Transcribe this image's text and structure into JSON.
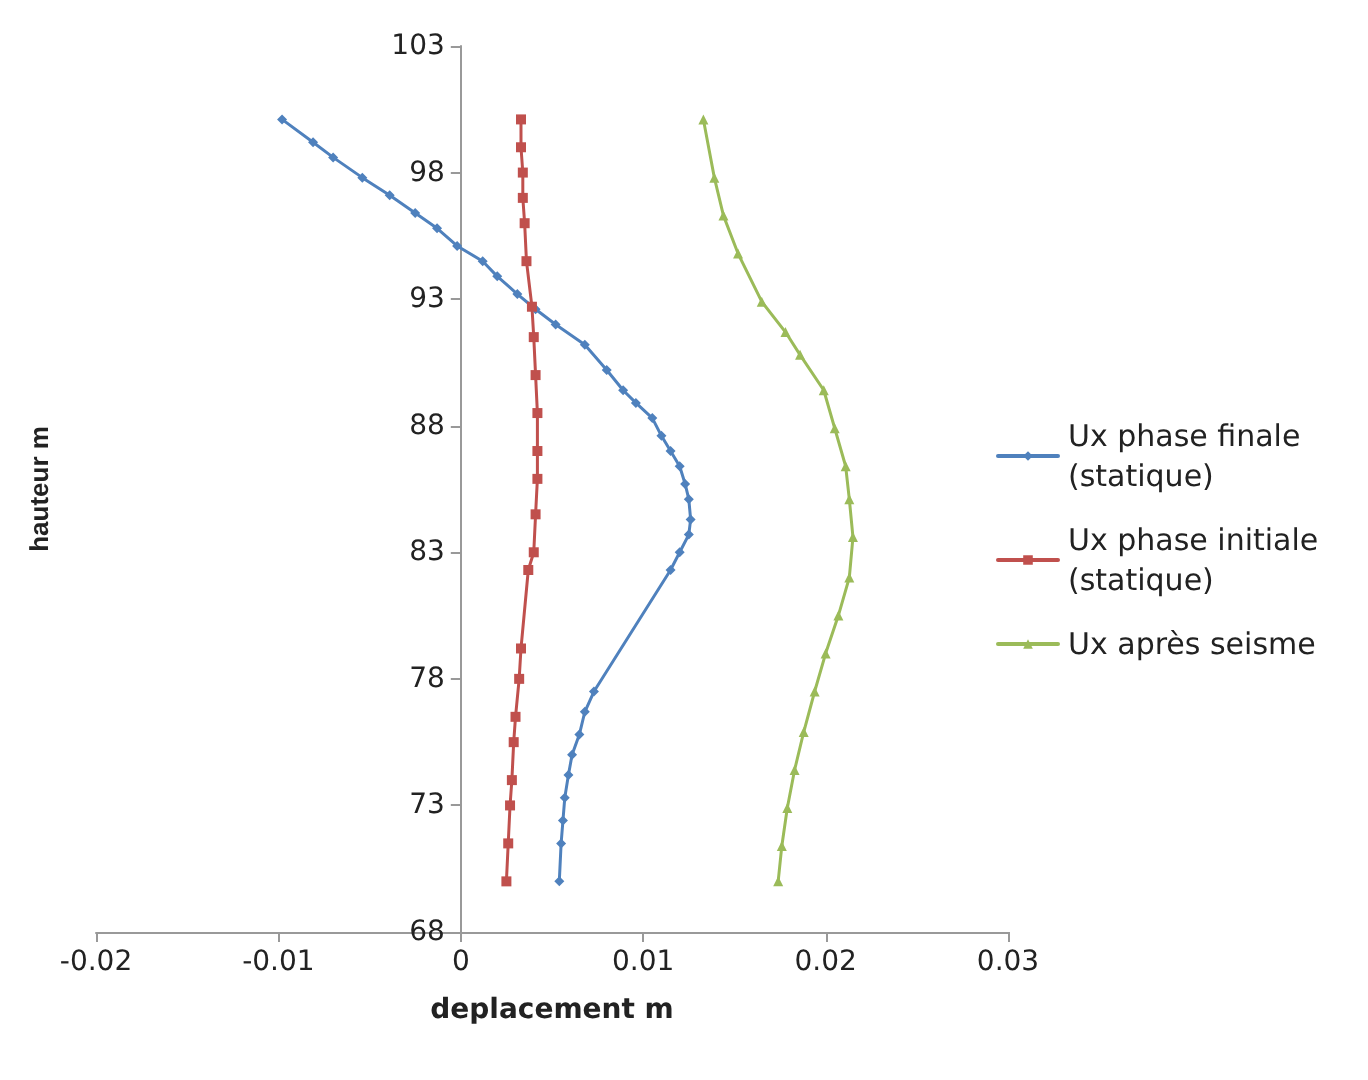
{
  "chart_data": {
    "type": "line",
    "xlabel": "deplacement m",
    "ylabel": "hauteur m",
    "xlim": [
      -0.02,
      0.03
    ],
    "xticks": [
      -0.02,
      -0.01,
      0,
      0.01,
      0.02,
      0.03
    ],
    "ylim": [
      68,
      103
    ],
    "yticks": [
      68,
      73,
      78,
      83,
      88,
      93,
      98,
      103
    ],
    "grid": false,
    "legend": "right",
    "line_style": "solid",
    "series": [
      {
        "name": "Ux phase finale (statique)",
        "color": "#4f81bd",
        "marker": "diamond",
        "x": [
          -0.0098,
          -0.0081,
          -0.007,
          -0.0054,
          -0.0039,
          -0.0025,
          -0.0013,
          -0.0002,
          0.0012,
          0.002,
          0.0031,
          0.0041,
          0.0052,
          0.0068,
          0.008,
          0.0089,
          0.0096,
          0.0105,
          0.011,
          0.0115,
          0.012,
          0.0123,
          0.0125,
          0.0126,
          0.0125,
          0.012,
          0.0115,
          0.0073,
          0.0068,
          0.0065,
          0.0061,
          0.0059,
          0.0057,
          0.0056,
          0.0055,
          0.0054
        ],
        "values": [
          100.1,
          99.2,
          98.6,
          97.8,
          97.1,
          96.4,
          95.8,
          95.1,
          94.5,
          93.9,
          93.2,
          92.6,
          92,
          91.2,
          90.2,
          89.4,
          88.9,
          88.3,
          87.6,
          87,
          86.4,
          85.7,
          85.1,
          84.3,
          83.7,
          83,
          82.3,
          77.5,
          76.7,
          75.8,
          75,
          74.2,
          73.3,
          72.4,
          71.5,
          70
        ]
      },
      {
        "name": "Ux phase initiale (statique)",
        "color": "#c0504d",
        "marker": "square",
        "x": [
          0.0033,
          0.0033,
          0.0034,
          0.0034,
          0.0035,
          0.0036,
          0.0039,
          0.004,
          0.0041,
          0.0042,
          0.0042,
          0.0042,
          0.0041,
          0.004,
          0.0037,
          0.0033,
          0.0032,
          0.003,
          0.0029,
          0.0028,
          0.0027,
          0.0026,
          0.0025
        ],
        "values": [
          100.1,
          99,
          98,
          97,
          96,
          94.5,
          92.7,
          91.5,
          90,
          88.5,
          87,
          85.9,
          84.5,
          83,
          82.3,
          79.2,
          78,
          76.5,
          75.5,
          74,
          73,
          71.5,
          70
        ]
      },
      {
        "name": "Ux après seisme",
        "color": "#9bbb59",
        "marker": "triangle",
        "x": [
          0.0133,
          0.0139,
          0.0144,
          0.0152,
          0.0165,
          0.0178,
          0.0186,
          0.0199,
          0.0205,
          0.0211,
          0.0213,
          0.0215,
          0.0213,
          0.0207,
          0.02,
          0.0194,
          0.0188,
          0.0183,
          0.0179,
          0.0176,
          0.0174
        ],
        "values": [
          100.1,
          97.8,
          96.3,
          94.8,
          92.9,
          91.7,
          90.8,
          89.4,
          87.9,
          86.4,
          85.1,
          83.6,
          82,
          80.5,
          79,
          77.5,
          75.9,
          74.4,
          72.9,
          71.4,
          70
        ]
      }
    ]
  }
}
